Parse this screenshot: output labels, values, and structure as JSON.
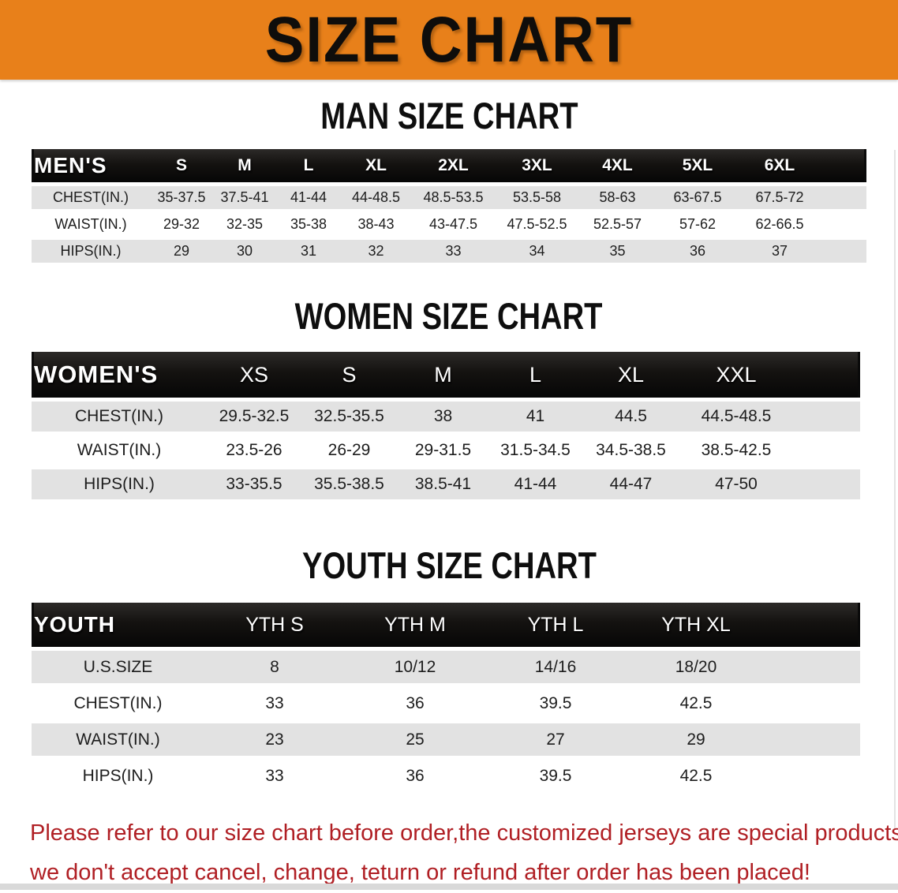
{
  "banner": {
    "title": "SIZE CHART",
    "bg_color": "#E8801A"
  },
  "sections": [
    {
      "heading": "MAN SIZE CHART",
      "group_label": "MEN'S",
      "sizes": [
        "S",
        "M",
        "L",
        "XL",
        "2XL",
        "3XL",
        "4XL",
        "5XL",
        "6XL"
      ],
      "rows": [
        {
          "label": "CHEST(IN.)",
          "values": [
            "35-37.5",
            "37.5-41",
            "41-44",
            "44-48.5",
            "48.5-53.5",
            "53.5-58",
            "58-63",
            "63-67.5",
            "67.5-72"
          ]
        },
        {
          "label": "WAIST(IN.)",
          "values": [
            "29-32",
            "32-35",
            "35-38",
            "38-43",
            "43-47.5",
            "47.5-52.5",
            "52.5-57",
            "57-62",
            "62-66.5"
          ]
        },
        {
          "label": "HIPS(IN.)",
          "values": [
            "29",
            "30",
            "31",
            "32",
            "33",
            "34",
            "35",
            "36",
            "37"
          ]
        }
      ]
    },
    {
      "heading": "WOMEN SIZE CHART",
      "group_label": "WOMEN'S",
      "sizes": [
        "XS",
        "S",
        "M",
        "L",
        "XL",
        "XXL"
      ],
      "rows": [
        {
          "label": "CHEST(IN.)",
          "values": [
            "29.5-32.5",
            "32.5-35.5",
            "38",
            "41",
            "44.5",
            "44.5-48.5"
          ]
        },
        {
          "label": "WAIST(IN.)",
          "values": [
            "23.5-26",
            "26-29",
            "29-31.5",
            "31.5-34.5",
            "34.5-38.5",
            "38.5-42.5"
          ]
        },
        {
          "label": "HIPS(IN.)",
          "values": [
            "33-35.5",
            "35.5-38.5",
            "38.5-41",
            "41-44",
            "44-47",
            "47-50"
          ]
        }
      ]
    },
    {
      "heading": "YOUTH SIZE CHART",
      "group_label": "YOUTH",
      "sizes": [
        "YTH S",
        "YTH M",
        "YTH L",
        "YTH XL"
      ],
      "rows": [
        {
          "label": "U.S.SIZE",
          "values": [
            "8",
            "10/12",
            "14/16",
            "18/20"
          ]
        },
        {
          "label": "CHEST(IN.)",
          "values": [
            "33",
            "36",
            "39.5",
            "42.5"
          ]
        },
        {
          "label": "WAIST(IN.)",
          "values": [
            "23",
            "25",
            "27",
            "29"
          ]
        },
        {
          "label": "HIPS(IN.)",
          "values": [
            "33",
            "36",
            "39.5",
            "42.5"
          ]
        }
      ]
    }
  ],
  "footnote": {
    "line1": "Please refer to our size chart before order,the customized jerseys are special products,",
    "line2": "we don't accept cancel, change, teturn or refund after order has been placed!",
    "color": "#B01F24"
  }
}
